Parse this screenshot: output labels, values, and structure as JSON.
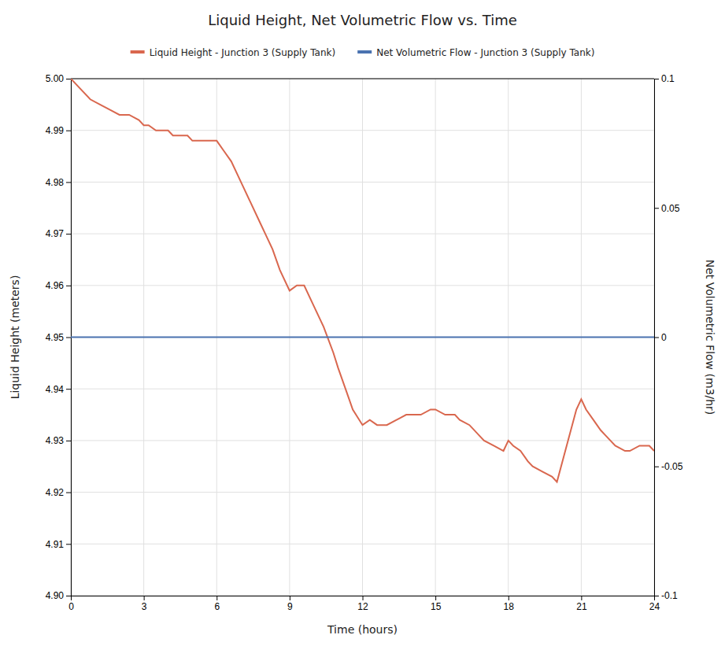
{
  "chart_data": {
    "type": "line",
    "title": "Liquid Height, Net Volumetric Flow vs. Time",
    "xlabel": "Time (hours)",
    "ylabel": "Liquid Height (meters)",
    "y2label": "Net Volumetric Flow (m3/hr)",
    "xlim": [
      0,
      24
    ],
    "xticks": [
      0,
      3,
      6,
      9,
      12,
      15,
      18,
      21,
      24
    ],
    "ylim": [
      4.9,
      5.0
    ],
    "yticks": [
      {
        "value": 4.9,
        "label": "4.90"
      },
      4.91,
      4.92,
      4.93,
      4.94,
      4.95,
      4.96,
      4.97,
      4.98,
      4.99,
      {
        "value": 5.0,
        "label": "5.00"
      }
    ],
    "y2lim": [
      -0.1,
      0.1
    ],
    "y2ticks": [
      -0.1,
      -0.05,
      0,
      0.05,
      0.1
    ],
    "grid": true,
    "legend": "top",
    "series": [
      {
        "name": "Liquid Height - Junction 3 (Supply Tank)",
        "color": "#d9674e",
        "axis": "y",
        "x": [
          0,
          0.4,
          0.8,
          1.2,
          1.6,
          2.0,
          2.4,
          2.8,
          3.0,
          3.2,
          3.5,
          3.8,
          4.0,
          4.2,
          4.5,
          4.8,
          5.0,
          5.2,
          5.5,
          5.8,
          6.0,
          6.3,
          6.6,
          7.0,
          7.4,
          7.8,
          8.0,
          8.3,
          8.6,
          9.0,
          9.3,
          9.6,
          10.0,
          10.4,
          10.8,
          11.0,
          11.3,
          11.6,
          12.0,
          12.3,
          12.6,
          13.0,
          13.4,
          13.8,
          14.0,
          14.4,
          14.8,
          15.0,
          15.4,
          15.8,
          16.0,
          16.4,
          16.8,
          17.0,
          17.4,
          17.8,
          18.0,
          18.2,
          18.5,
          18.8,
          19.0,
          19.4,
          19.8,
          20.0,
          20.4,
          20.8,
          21.0,
          21.2,
          21.5,
          21.8,
          22.0,
          22.4,
          22.8,
          23.0,
          23.4,
          23.8,
          24.0
        ],
        "values": [
          5.0,
          4.998,
          4.996,
          4.995,
          4.994,
          4.993,
          4.993,
          4.992,
          4.991,
          4.991,
          4.99,
          4.99,
          4.99,
          4.989,
          4.989,
          4.989,
          4.988,
          4.988,
          4.988,
          4.988,
          4.988,
          4.986,
          4.984,
          4.98,
          4.976,
          4.972,
          4.97,
          4.967,
          4.963,
          4.959,
          4.96,
          4.96,
          4.956,
          4.952,
          4.947,
          4.944,
          4.94,
          4.936,
          4.933,
          4.934,
          4.933,
          4.933,
          4.934,
          4.935,
          4.935,
          4.935,
          4.936,
          4.936,
          4.935,
          4.935,
          4.934,
          4.933,
          4.931,
          4.93,
          4.929,
          4.928,
          4.93,
          4.929,
          4.928,
          4.926,
          4.925,
          4.924,
          4.923,
          4.922,
          4.929,
          4.936,
          4.938,
          4.936,
          4.934,
          4.932,
          4.931,
          4.929,
          4.928,
          4.928,
          4.929,
          4.929,
          4.928
        ]
      },
      {
        "name": "Net Volumetric Flow - Junction 3 (Supply Tank)",
        "color": "#4a72b0",
        "axis": "y2",
        "x": [
          0,
          24
        ],
        "values": [
          0.0,
          0.0
        ]
      }
    ]
  }
}
